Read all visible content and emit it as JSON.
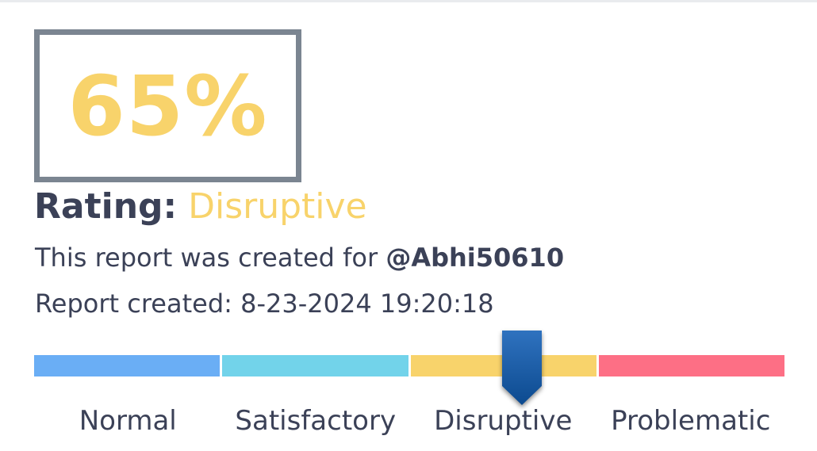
{
  "report": {
    "score": "65%",
    "rating_label": "Rating:",
    "rating_value": "Disruptive",
    "created_for_prefix": "This report was created for ",
    "created_for_handle": "@Abhi50610",
    "created_at": "Report created: 8-23-2024 19:20:18"
  },
  "scale": {
    "segments": [
      {
        "label": "Normal",
        "color": "#6aaef5"
      },
      {
        "label": "Satisfactory",
        "color": "#72d3ea"
      },
      {
        "label": "Disruptive",
        "color": "#f8d36b"
      },
      {
        "label": "Problematic",
        "color": "#fd6f85"
      }
    ],
    "marker_value": 0.65,
    "marker_color": "#1a5aa0"
  },
  "colors": {
    "score_color": "#f8d36b",
    "box_border": "#7b8591",
    "text_dark": "#3b4157"
  }
}
